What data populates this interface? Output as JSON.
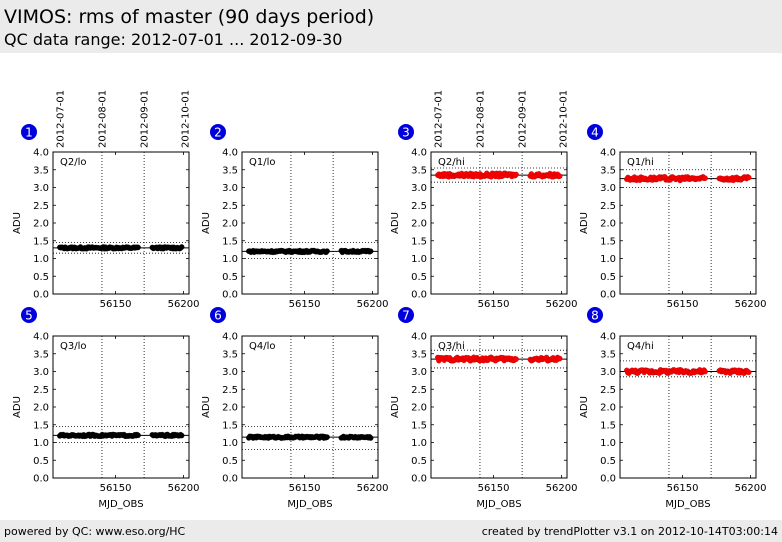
{
  "header": {
    "title": "VIMOS: rms of master (90 days period)",
    "subtitle": "QC data range: 2012-07-01 ... 2012-09-30"
  },
  "footer": {
    "left": "powered by QC: www.eso.org/HC",
    "right": "created by trendPlotter v3.1 on 2012-10-14T03:00:14"
  },
  "colors": {
    "black_series": "#000000",
    "red_series": "#ff0000",
    "badge": "#0000dd",
    "header_bg": "#ebebeb"
  },
  "chart_data": [
    {
      "type": "scatter",
      "panel": "1",
      "label": "Q2/lo",
      "color": "#000000",
      "ylabel": "ADU",
      "xlabel": "",
      "xlim": [
        56104,
        56204
      ],
      "ylim": [
        0,
        4
      ],
      "xticks": [
        56150,
        56200
      ],
      "yticks": [
        0.0,
        0.5,
        1.0,
        1.5,
        2.0,
        2.5,
        3.0,
        3.5,
        4.0
      ],
      "date_ticks": [
        {
          "mjd": 56109,
          "label": "2012-07-01"
        },
        {
          "mjd": 56140,
          "label": "2012-08-01"
        },
        {
          "mjd": 56171,
          "label": "2012-09-01"
        },
        {
          "mjd": 56201,
          "label": "2012-10-01"
        }
      ],
      "ref_line": 1.3,
      "limits": [
        1.45,
        1.15
      ],
      "segments": [
        [
          56109,
          56167
        ],
        [
          56177,
          56199
        ]
      ]
    },
    {
      "type": "scatter",
      "panel": "2",
      "label": "Q1/lo",
      "color": "#000000",
      "ylabel": "ADU",
      "xlabel": "",
      "xlim": [
        56104,
        56204
      ],
      "ylim": [
        0,
        4
      ],
      "xticks": [
        56150,
        56200
      ],
      "yticks": [
        0.0,
        0.5,
        1.0,
        1.5,
        2.0,
        2.5,
        3.0,
        3.5,
        4.0
      ],
      "date_ticks": [],
      "ref_line": 1.2,
      "limits": [
        1.45,
        1.0
      ],
      "segments": [
        [
          56109,
          56167
        ],
        [
          56177,
          56199
        ]
      ]
    },
    {
      "type": "scatter",
      "panel": "3",
      "label": "Q2/hi",
      "color": "#ff0000",
      "ylabel": "ADU",
      "xlabel": "",
      "xlim": [
        56104,
        56204
      ],
      "ylim": [
        0,
        4
      ],
      "xticks": [
        56150,
        56200
      ],
      "yticks": [
        0.0,
        0.5,
        1.0,
        1.5,
        2.0,
        2.5,
        3.0,
        3.5,
        4.0
      ],
      "date_ticks": [
        {
          "mjd": 56109,
          "label": "2012-07-01"
        },
        {
          "mjd": 56140,
          "label": "2012-08-01"
        },
        {
          "mjd": 56171,
          "label": "2012-09-01"
        },
        {
          "mjd": 56201,
          "label": "2012-10-01"
        }
      ],
      "ref_line": 3.35,
      "limits": [
        3.55,
        3.15
      ],
      "segments": [
        [
          56109,
          56167
        ],
        [
          56177,
          56199
        ]
      ]
    },
    {
      "type": "scatter",
      "panel": "4",
      "label": "Q1/hi",
      "color": "#ff0000",
      "ylabel": "ADU",
      "xlabel": "",
      "xlim": [
        56104,
        56204
      ],
      "ylim": [
        0,
        4
      ],
      "xticks": [
        56150,
        56200
      ],
      "yticks": [
        0.0,
        0.5,
        1.0,
        1.5,
        2.0,
        2.5,
        3.0,
        3.5,
        4.0
      ],
      "date_ticks": [],
      "ref_line": 3.25,
      "limits": [
        3.5,
        3.0
      ],
      "segments": [
        [
          56109,
          56167
        ],
        [
          56177,
          56199
        ]
      ]
    },
    {
      "type": "scatter",
      "panel": "5",
      "label": "Q3/lo",
      "color": "#000000",
      "ylabel": "ADU",
      "xlabel": "MJD_OBS",
      "xlim": [
        56104,
        56204
      ],
      "ylim": [
        0,
        4
      ],
      "xticks": [
        56150,
        56200
      ],
      "yticks": [
        0.0,
        0.5,
        1.0,
        1.5,
        2.0,
        2.5,
        3.0,
        3.5,
        4.0
      ],
      "date_ticks": [],
      "ref_line": 1.2,
      "limits": [
        1.45,
        1.0
      ],
      "segments": [
        [
          56109,
          56167
        ],
        [
          56177,
          56199
        ]
      ]
    },
    {
      "type": "scatter",
      "panel": "6",
      "label": "Q4/lo",
      "color": "#000000",
      "ylabel": "ADU",
      "xlabel": "MJD_OBS",
      "xlim": [
        56104,
        56204
      ],
      "ylim": [
        0,
        4
      ],
      "xticks": [
        56150,
        56200
      ],
      "yticks": [
        0.0,
        0.5,
        1.0,
        1.5,
        2.0,
        2.5,
        3.0,
        3.5,
        4.0
      ],
      "date_ticks": [],
      "ref_line": 1.15,
      "limits": [
        1.45,
        0.8
      ],
      "segments": [
        [
          56109,
          56167
        ],
        [
          56177,
          56199
        ]
      ]
    },
    {
      "type": "scatter",
      "panel": "7",
      "label": "Q3/hi",
      "color": "#ff0000",
      "ylabel": "ADU",
      "xlabel": "MJD_OBS",
      "xlim": [
        56104,
        56204
      ],
      "ylim": [
        0,
        4
      ],
      "xticks": [
        56150,
        56200
      ],
      "yticks": [
        0.0,
        0.5,
        1.0,
        1.5,
        2.0,
        2.5,
        3.0,
        3.5,
        4.0
      ],
      "date_ticks": [],
      "ref_line": 3.35,
      "limits": [
        3.6,
        3.1
      ],
      "segments": [
        [
          56109,
          56167
        ],
        [
          56177,
          56199
        ]
      ]
    },
    {
      "type": "scatter",
      "panel": "8",
      "label": "Q4/hi",
      "color": "#ff0000",
      "ylabel": "ADU",
      "xlabel": "MJD_OBS",
      "xlim": [
        56104,
        56204
      ],
      "ylim": [
        0,
        4
      ],
      "xticks": [
        56150,
        56200
      ],
      "yticks": [
        0.0,
        0.5,
        1.0,
        1.5,
        2.0,
        2.5,
        3.0,
        3.5,
        4.0
      ],
      "date_ticks": [],
      "ref_line": 3.0,
      "limits": [
        3.3,
        2.85
      ],
      "segments": [
        [
          56109,
          56167
        ],
        [
          56177,
          56199
        ]
      ]
    }
  ]
}
